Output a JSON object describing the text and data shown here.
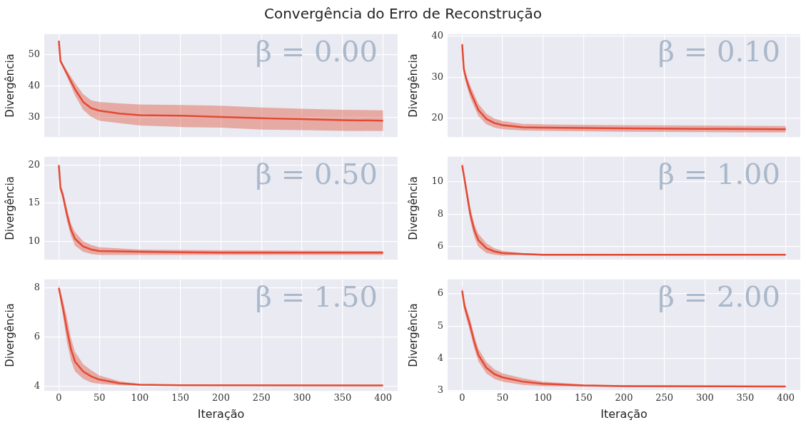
{
  "chart_data": [
    {
      "type": "line",
      "title": "Convergência do Erro de Reconstrução",
      "ylabel": "Divergência",
      "annotations": [
        "β = 0.00"
      ],
      "xlim": [
        -18,
        418
      ],
      "xticks": [
        0,
        50,
        100,
        150,
        200,
        250,
        300,
        350,
        400
      ],
      "ylim": [
        23.8,
        56.6
      ],
      "yticks": [
        30,
        40,
        50
      ],
      "grid": true,
      "tick_labels": "y",
      "series": [
        {
          "color": "#e24a33",
          "x": [
            0,
            2,
            5,
            10,
            20,
            30,
            40,
            50,
            75,
            100,
            150,
            200,
            250,
            300,
            350,
            400
          ],
          "values": [
            54.5,
            48,
            46.5,
            44,
            39,
            35,
            33,
            32.2,
            31.3,
            30.8,
            30.6,
            30.2,
            29.8,
            29.5,
            29.2,
            29.0
          ],
          "lower": [
            54,
            47.5,
            45.8,
            43,
            37,
            32.5,
            30.2,
            29,
            28.2,
            27.5,
            27,
            26.8,
            26.2,
            26,
            25.8,
            25.7
          ],
          "upper": [
            55,
            48.5,
            47.2,
            45,
            41,
            37.5,
            35.5,
            35,
            34.5,
            34.2,
            34,
            33.8,
            33.2,
            32.8,
            32.5,
            32.3
          ]
        }
      ]
    },
    {
      "type": "line",
      "ylabel": "Divergência",
      "annotations": [
        "β = 0.10"
      ],
      "xlim": [
        -18,
        418
      ],
      "xticks": [
        0,
        50,
        100,
        150,
        200,
        250,
        300,
        350,
        400
      ],
      "ylim": [
        15.4,
        40.5
      ],
      "yticks": [
        20,
        30,
        40
      ],
      "grid": true,
      "tick_labels": "y",
      "series": [
        {
          "color": "#e24a33",
          "x": [
            0,
            2,
            5,
            10,
            20,
            30,
            40,
            50,
            75,
            100,
            200,
            300,
            400
          ],
          "values": [
            38,
            32,
            29.5,
            26.5,
            22,
            19.8,
            18.8,
            18.3,
            17.8,
            17.7,
            17.5,
            17.4,
            17.3
          ],
          "lower": [
            37,
            31,
            28.3,
            25,
            20.5,
            18.5,
            17.7,
            17.3,
            17,
            16.9,
            16.7,
            16.6,
            16.5
          ],
          "upper": [
            39,
            33,
            30.7,
            28,
            23.5,
            21.1,
            19.9,
            19.3,
            18.6,
            18.5,
            18.3,
            18.2,
            18.1
          ]
        }
      ]
    },
    {
      "type": "line",
      "ylabel": "Divergência",
      "annotations": [
        "β = 0.50"
      ],
      "xlim": [
        -18,
        418
      ],
      "xticks": [
        0,
        50,
        100,
        150,
        200,
        250,
        300,
        350,
        400
      ],
      "ylim": [
        7.56,
        21.1
      ],
      "yticks": [
        10,
        15,
        20
      ],
      "grid": true,
      "tick_labels": "y",
      "series": [
        {
          "color": "#e24a33",
          "x": [
            0,
            2,
            5,
            10,
            15,
            20,
            30,
            40,
            50,
            100,
            200,
            250,
            400
          ],
          "values": [
            20,
            17,
            16,
            13.5,
            11.5,
            10.3,
            9.3,
            8.9,
            8.7,
            8.6,
            8.5,
            8.5,
            8.5
          ],
          "lower": [
            19.7,
            16.6,
            15.4,
            12.7,
            10.7,
            9.4,
            8.6,
            8.3,
            8.2,
            8.2,
            8.2,
            8.18,
            8.2
          ],
          "upper": [
            20.3,
            17.4,
            16.6,
            14.3,
            12.3,
            11.2,
            10,
            9.5,
            9.2,
            8.9,
            8.8,
            8.78,
            8.7
          ]
        }
      ]
    },
    {
      "type": "line",
      "ylabel": "Divergência",
      "annotations": [
        "β = 1.00"
      ],
      "xlim": [
        -18,
        418
      ],
      "xticks": [
        0,
        50,
        100,
        150,
        200,
        250,
        300,
        350,
        400
      ],
      "ylim": [
        5.2,
        11.52
      ],
      "yticks": [
        6,
        8,
        10
      ],
      "grid": true,
      "tick_labels": "y",
      "series": [
        {
          "color": "#e24a33",
          "x": [
            0,
            5,
            10,
            15,
            20,
            30,
            40,
            50,
            75,
            100,
            400
          ],
          "values": [
            11,
            9.5,
            8,
            7,
            6.4,
            5.9,
            5.7,
            5.6,
            5.55,
            5.5,
            5.5
          ],
          "lower": [
            10.8,
            9.2,
            7.6,
            6.6,
            6,
            5.6,
            5.5,
            5.45,
            5.5,
            5.45,
            5.47
          ],
          "upper": [
            11.2,
            9.8,
            8.4,
            7.4,
            6.8,
            6.2,
            5.9,
            5.75,
            5.6,
            5.55,
            5.53
          ]
        }
      ]
    },
    {
      "type": "line",
      "xlabel": "Iteração",
      "ylabel": "Divergência",
      "annotations": [
        "β = 1.50"
      ],
      "xlim": [
        -18,
        418
      ],
      "xticks": [
        0,
        50,
        100,
        150,
        200,
        250,
        300,
        350,
        400
      ],
      "ylim": [
        3.81,
        8.35
      ],
      "yticks": [
        4,
        6,
        8
      ],
      "grid": true,
      "series": [
        {
          "color": "#e24a33",
          "x": [
            0,
            5,
            10,
            15,
            20,
            30,
            40,
            50,
            75,
            100,
            150,
            400
          ],
          "values": [
            8,
            7.2,
            6.3,
            5.5,
            5.0,
            4.6,
            4.4,
            4.27,
            4.12,
            4.06,
            4.04,
            4.03
          ],
          "lower": [
            7.85,
            6.9,
            5.8,
            5.05,
            4.6,
            4.3,
            4.15,
            4.1,
            4.04,
            4.03,
            4.02,
            4.01
          ],
          "upper": [
            8.15,
            7.5,
            6.8,
            5.95,
            5.4,
            4.9,
            4.65,
            4.44,
            4.2,
            4.09,
            4.06,
            4.05
          ]
        }
      ]
    },
    {
      "type": "line",
      "xlabel": "Iteração",
      "ylabel": "Divergência",
      "annotations": [
        "β = 2.00"
      ],
      "xlim": [
        -18,
        418
      ],
      "xticks": [
        0,
        50,
        100,
        150,
        200,
        250,
        300,
        350,
        400
      ],
      "ylim": [
        2.98,
        6.45
      ],
      "yticks": [
        3,
        4,
        5,
        6
      ],
      "grid": true,
      "series": [
        {
          "color": "#e24a33",
          "x": [
            0,
            3,
            10,
            15,
            20,
            30,
            40,
            50,
            75,
            100,
            150,
            200,
            400
          ],
          "values": [
            6.1,
            5.6,
            5.0,
            4.5,
            4.1,
            3.7,
            3.5,
            3.4,
            3.27,
            3.2,
            3.15,
            3.13,
            3.12
          ],
          "lower": [
            5.95,
            5.45,
            4.8,
            4.3,
            3.9,
            3.52,
            3.35,
            3.27,
            3.17,
            3.13,
            3.12,
            3.11,
            3.11
          ],
          "upper": [
            6.25,
            5.75,
            5.2,
            4.7,
            4.3,
            3.88,
            3.65,
            3.53,
            3.37,
            3.27,
            3.18,
            3.15,
            3.13
          ]
        }
      ]
    }
  ]
}
